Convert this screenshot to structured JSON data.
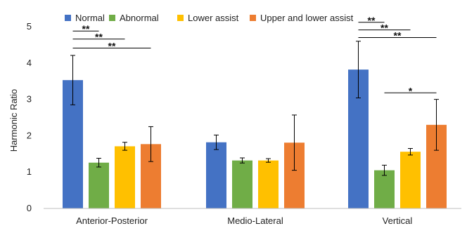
{
  "chart_data": {
    "type": "bar",
    "title": "",
    "xlabel": "",
    "ylabel": "Harmonic Ratio",
    "ylim": [
      0,
      5
    ],
    "yticks": [
      "0",
      "1",
      "2",
      "3",
      "4",
      "5"
    ],
    "grid": false,
    "legend_position": "top",
    "categories": [
      "Anterior-Posterior",
      "Medio-Lateral",
      "Vertical"
    ],
    "series": [
      {
        "name": "Normal",
        "color": "#4472C4",
        "values": [
          3.53,
          1.82,
          3.82
        ],
        "errors": [
          0.68,
          0.2,
          0.78
        ]
      },
      {
        "name": "Abnormal",
        "color": "#70AD47",
        "values": [
          1.26,
          1.32,
          1.05
        ],
        "errors": [
          0.12,
          0.07,
          0.14
        ]
      },
      {
        "name": "Lower assist",
        "color": "#FFC000",
        "values": [
          1.71,
          1.32,
          1.56
        ],
        "errors": [
          0.11,
          0.05,
          0.09
        ]
      },
      {
        "name": "Upper and lower assist",
        "color": "#ED7D31",
        "values": [
          1.77,
          1.81,
          2.3
        ],
        "errors": [
          0.48,
          0.76,
          0.7
        ]
      }
    ],
    "significance": [
      {
        "category": 0,
        "from": 0,
        "to": 1,
        "level": 4.88,
        "label": "**"
      },
      {
        "category": 0,
        "from": 0,
        "to": 2,
        "level": 4.66,
        "label": "**"
      },
      {
        "category": 0,
        "from": 0,
        "to": 3,
        "level": 4.41,
        "label": "**"
      },
      {
        "category": 2,
        "from": 0,
        "to": 1,
        "level": 5.12,
        "label": "**"
      },
      {
        "category": 2,
        "from": 0,
        "to": 2,
        "level": 4.91,
        "label": "**"
      },
      {
        "category": 2,
        "from": 0,
        "to": 3,
        "level": 4.7,
        "label": "**"
      },
      {
        "category": 2,
        "from": 1,
        "to": 3,
        "level": 3.18,
        "label": "*"
      }
    ]
  }
}
